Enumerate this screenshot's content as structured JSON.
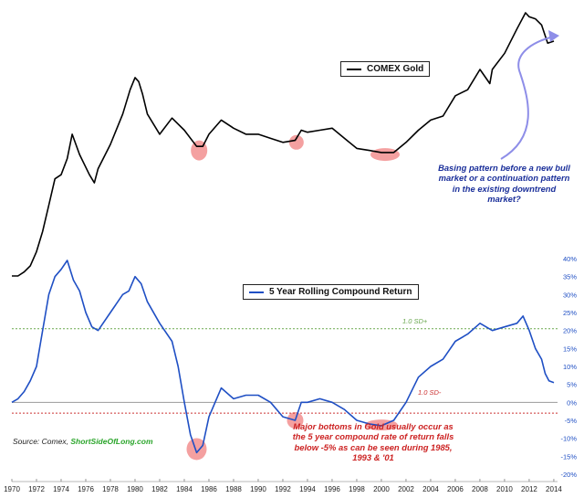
{
  "chart_data": [
    {
      "type": "line",
      "series": [
        {
          "name": "COMEX Gold",
          "color": "#000000",
          "points": [
            [
              1970.0,
              0.0
            ],
            [
              1970.5,
              0.0
            ],
            [
              1971.0,
              0.02
            ],
            [
              1971.5,
              0.05
            ],
            [
              1972.0,
              0.12
            ],
            [
              1972.5,
              0.22
            ],
            [
              1973.0,
              0.35
            ],
            [
              1973.5,
              0.48
            ],
            [
              1974.0,
              0.5
            ],
            [
              1974.5,
              0.58
            ],
            [
              1974.9,
              0.7
            ],
            [
              1975.5,
              0.6
            ],
            [
              1976.3,
              0.5
            ],
            [
              1976.7,
              0.46
            ],
            [
              1977.0,
              0.53
            ],
            [
              1978.0,
              0.65
            ],
            [
              1979.0,
              0.8
            ],
            [
              1979.6,
              0.92
            ],
            [
              1980.0,
              0.98
            ],
            [
              1980.3,
              0.96
            ],
            [
              1980.6,
              0.9
            ],
            [
              1981.0,
              0.8
            ],
            [
              1982.0,
              0.7
            ],
            [
              1983.0,
              0.78
            ],
            [
              1984.0,
              0.72
            ],
            [
              1985.0,
              0.64
            ],
            [
              1985.5,
              0.64
            ],
            [
              1986.0,
              0.7
            ],
            [
              1987.0,
              0.77
            ],
            [
              1988.0,
              0.73
            ],
            [
              1989.0,
              0.7
            ],
            [
              1990.0,
              0.7
            ],
            [
              1991.0,
              0.68
            ],
            [
              1992.0,
              0.66
            ],
            [
              1993.0,
              0.67
            ],
            [
              1993.5,
              0.72
            ],
            [
              1994.0,
              0.71
            ],
            [
              1995.0,
              0.72
            ],
            [
              1996.0,
              0.73
            ],
            [
              1997.0,
              0.68
            ],
            [
              1998.0,
              0.63
            ],
            [
              1999.0,
              0.62
            ],
            [
              2000.0,
              0.61
            ],
            [
              2001.0,
              0.61
            ],
            [
              2002.0,
              0.66
            ],
            [
              2003.0,
              0.72
            ],
            [
              2004.0,
              0.77
            ],
            [
              2005.0,
              0.79
            ],
            [
              2006.0,
              0.89
            ],
            [
              2007.0,
              0.92
            ],
            [
              2008.0,
              1.02
            ],
            [
              2008.8,
              0.95
            ],
            [
              2009.0,
              1.02
            ],
            [
              2010.0,
              1.1
            ],
            [
              2011.0,
              1.22
            ],
            [
              2011.7,
              1.3
            ],
            [
              2012.0,
              1.28
            ],
            [
              2012.5,
              1.27
            ],
            [
              2013.0,
              1.24
            ],
            [
              2013.5,
              1.15
            ],
            [
              2014.0,
              1.16
            ]
          ]
        }
      ],
      "grid": false
    },
    {
      "type": "line",
      "series": [
        {
          "name": "5 Year Rolling Compound Return",
          "color": "#1f4fc4",
          "points": [
            [
              1970.0,
              0.0
            ],
            [
              1970.5,
              1.0
            ],
            [
              1971.0,
              3.0
            ],
            [
              1971.5,
              6.0
            ],
            [
              1972.0,
              10.0
            ],
            [
              1972.5,
              20.0
            ],
            [
              1973.0,
              30.0
            ],
            [
              1973.5,
              35.0
            ],
            [
              1974.0,
              37.0
            ],
            [
              1974.5,
              39.5
            ],
            [
              1975.0,
              34.0
            ],
            [
              1975.5,
              31.0
            ],
            [
              1976.0,
              25.0
            ],
            [
              1976.5,
              21.0
            ],
            [
              1977.0,
              20.0
            ],
            [
              1978.0,
              25.0
            ],
            [
              1979.0,
              30.0
            ],
            [
              1979.5,
              31.0
            ],
            [
              1980.0,
              35.0
            ],
            [
              1980.5,
              33.0
            ],
            [
              1981.0,
              28.0
            ],
            [
              1982.0,
              22.0
            ],
            [
              1983.0,
              17.0
            ],
            [
              1983.5,
              10.0
            ],
            [
              1984.0,
              0.0
            ],
            [
              1984.5,
              -9.0
            ],
            [
              1985.0,
              -14.0
            ],
            [
              1985.5,
              -12.0
            ],
            [
              1986.0,
              -4.0
            ],
            [
              1987.0,
              4.0
            ],
            [
              1988.0,
              1.0
            ],
            [
              1989.0,
              2.0
            ],
            [
              1990.0,
              2.0
            ],
            [
              1991.0,
              0.0
            ],
            [
              1992.0,
              -4.0
            ],
            [
              1993.0,
              -5.0
            ],
            [
              1993.5,
              0.0
            ],
            [
              1994.0,
              0.0
            ],
            [
              1995.0,
              1.0
            ],
            [
              1996.0,
              0.0
            ],
            [
              1997.0,
              -2.0
            ],
            [
              1998.0,
              -5.0
            ],
            [
              1999.0,
              -6.0
            ],
            [
              2000.0,
              -6.5
            ],
            [
              2001.0,
              -5.0
            ],
            [
              2002.0,
              0.0
            ],
            [
              2003.0,
              7.0
            ],
            [
              2004.0,
              10.0
            ],
            [
              2005.0,
              12.0
            ],
            [
              2006.0,
              17.0
            ],
            [
              2007.0,
              19.0
            ],
            [
              2008.0,
              22.0
            ],
            [
              2009.0,
              20.0
            ],
            [
              2010.0,
              21.0
            ],
            [
              2011.0,
              22.0
            ],
            [
              2011.5,
              24.0
            ],
            [
              2012.0,
              20.0
            ],
            [
              2012.5,
              15.0
            ],
            [
              2013.0,
              12.0
            ],
            [
              2013.3,
              8.0
            ],
            [
              2013.6,
              6.0
            ],
            [
              2014.0,
              5.5
            ]
          ]
        }
      ],
      "x_ticks": [
        "1970",
        "1972",
        "1974",
        "1976",
        "1978",
        "1980",
        "1982",
        "1984",
        "1986",
        "1988",
        "1990",
        "1992",
        "1994",
        "1996",
        "1998",
        "2000",
        "2002",
        "2004",
        "2006",
        "2008",
        "2010",
        "2012",
        "2014"
      ],
      "y_ticks": [
        "40%",
        "35%",
        "30%",
        "25%",
        "20%",
        "15%",
        "10%",
        "5%",
        "0%",
        "-5%",
        "-10%",
        "-15%",
        "-20%"
      ],
      "xlim": [
        1970,
        2014.3
      ],
      "ylim": [
        -20,
        40
      ],
      "reference_lines": [
        {
          "label": "1.0 SD+",
          "value": 20.5,
          "color": "#6aa84f",
          "style": "dotted"
        },
        {
          "label": "",
          "value": 0,
          "color": "#999999",
          "style": "solid"
        },
        {
          "label": "1.0 SD-",
          "value": -3,
          "color": "#cc3333",
          "style": "dotted"
        }
      ],
      "grid": false
    }
  ],
  "annotations": {
    "basing": "Basing pattern before a new bull market or a continuation pattern in the existing downtrend market?",
    "bottoms": "Major bottoms in Gold usually occur as the 5 year compound rate of return falls below -5% as can be seen during 1985, 1993 & '01"
  },
  "source": {
    "prefix": "Source: Comex,",
    "brand": "ShortSideOfLong.com"
  },
  "colors": {
    "gold_line": "#000000",
    "return_line": "#1f4fc4",
    "highlight": "#f08080",
    "basing_text": "#1a2f9a",
    "bottoms_text": "#cc2222",
    "arrow": "#8e8ee8"
  }
}
